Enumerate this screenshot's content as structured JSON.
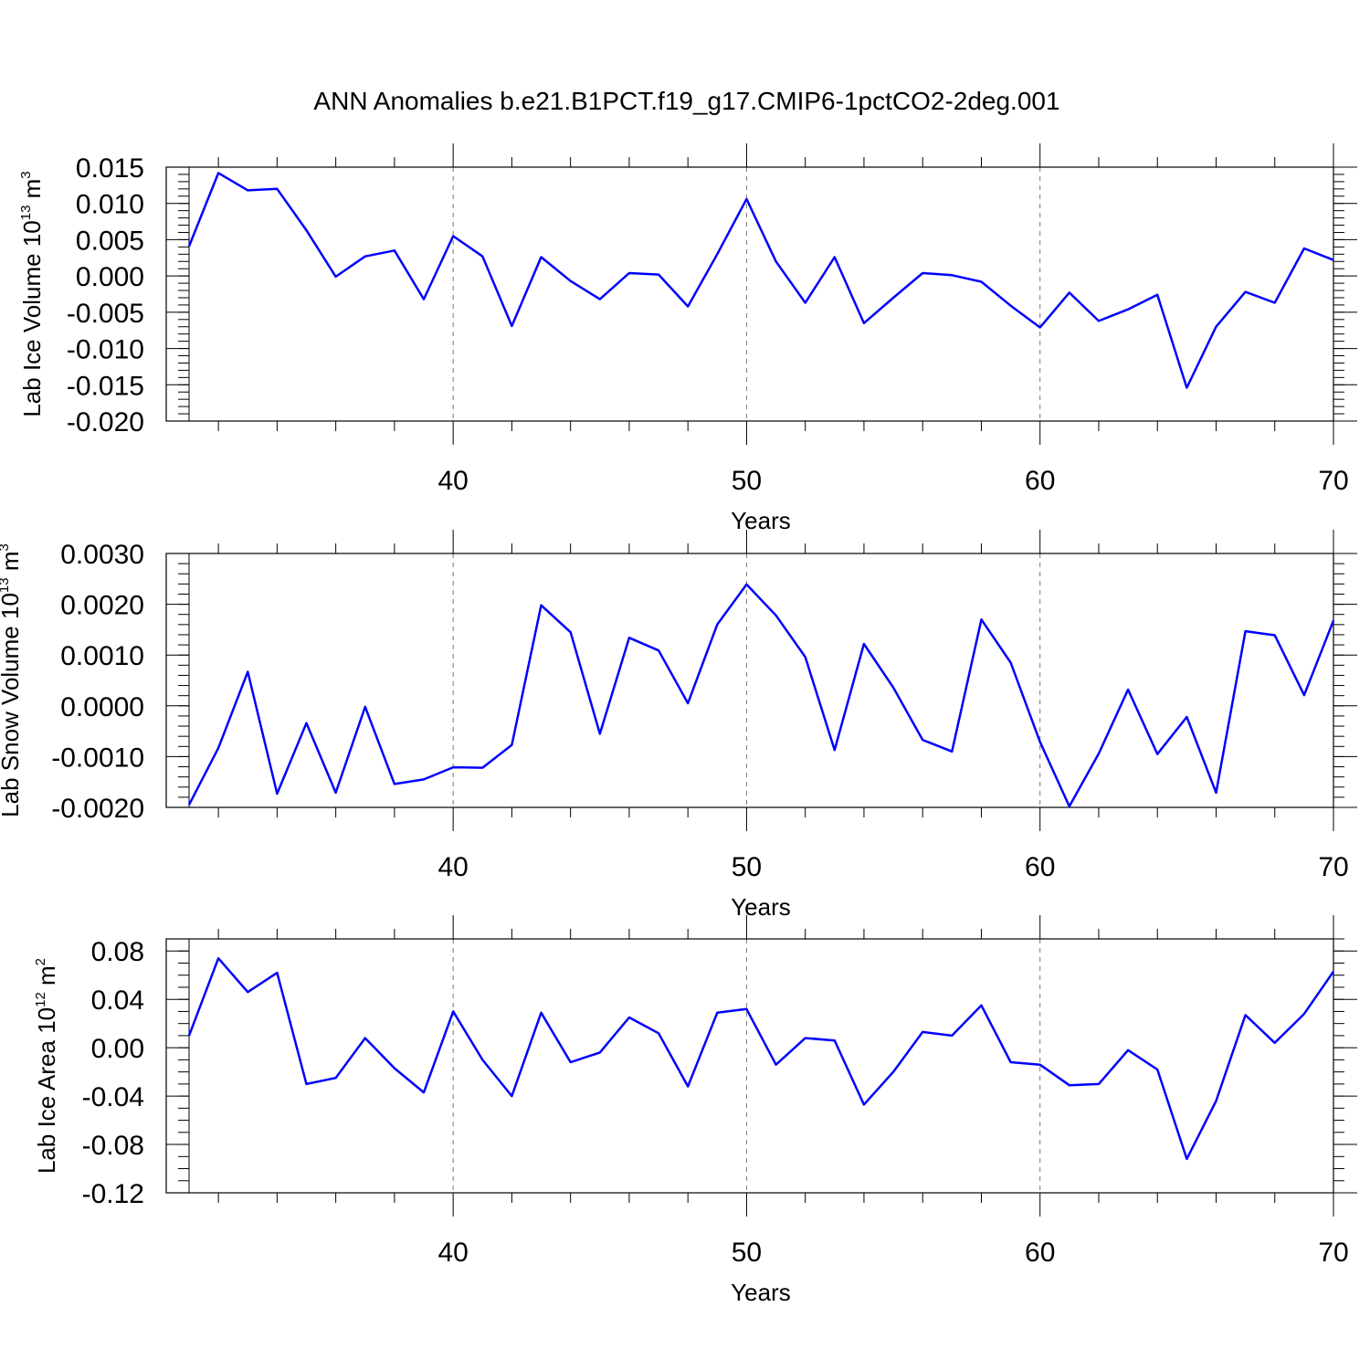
{
  "title": "ANN Anomalies b.e21.B1PCT.f19_g17.CMIP6-1pctCO2-2deg.001",
  "colors": {
    "series": "#0000ff",
    "grid": "#777777",
    "axis": "#000000"
  },
  "chart_data": [
    {
      "type": "line",
      "ylabel": {
        "prefix": "Lab Ice Volume 10",
        "exponent": "13",
        "unit": " m",
        "unit_exponent": "3"
      },
      "xlabel": "Years",
      "xlim": [
        31,
        70
      ],
      "ylim": [
        -0.02,
        0.015
      ],
      "x_ticks": [
        40,
        50,
        60,
        70
      ],
      "x_tick_labels": [
        "40",
        "50",
        "60",
        "70"
      ],
      "x_minor_step": 2,
      "y_ticks": [
        -0.02,
        -0.015,
        -0.01,
        -0.005,
        0.0,
        0.005,
        0.01,
        0.015
      ],
      "y_tick_labels": [
        "-0.020",
        "-0.015",
        "-0.010",
        "-0.005",
        "0.000",
        "0.005",
        "0.010",
        "0.015"
      ],
      "y_minor_step": 0.001,
      "grid_x": [
        40,
        50,
        60
      ],
      "x": [
        31,
        32,
        33,
        34,
        35,
        36,
        37,
        38,
        39,
        40,
        41,
        42,
        43,
        44,
        45,
        46,
        47,
        48,
        49,
        50,
        51,
        52,
        53,
        54,
        55,
        56,
        57,
        58,
        59,
        60,
        61,
        62,
        63,
        64,
        65,
        66,
        67,
        68,
        69,
        70
      ],
      "y": [
        0.0041,
        0.0142,
        0.0118,
        0.012,
        0.0063,
        -0.0001,
        0.0027,
        0.0035,
        -0.0032,
        0.0055,
        0.0027,
        -0.0069,
        0.0026,
        -0.0007,
        -0.0032,
        0.0004,
        0.0002,
        -0.0042,
        0.003,
        0.0106,
        0.002,
        -0.0037,
        0.0026,
        -0.0065,
        -0.003,
        0.0004,
        0.0001,
        -0.0008,
        -0.0041,
        -0.0071,
        -0.0023,
        -0.0062,
        -0.0046,
        -0.0026,
        -0.0154,
        -0.007,
        -0.0022,
        -0.0037,
        0.0038,
        0.0022
      ]
    },
    {
      "type": "line",
      "ylabel": {
        "prefix": "Lab Snow Volume 10",
        "exponent": "13",
        "unit": " m",
        "unit_exponent": "3"
      },
      "xlabel": "Years",
      "xlim": [
        31,
        70
      ],
      "ylim": [
        -0.002,
        0.003
      ],
      "x_ticks": [
        40,
        50,
        60,
        70
      ],
      "x_tick_labels": [
        "40",
        "50",
        "60",
        "70"
      ],
      "x_minor_step": 2,
      "y_ticks": [
        -0.002,
        -0.001,
        0.0,
        0.001,
        0.002,
        0.003
      ],
      "y_tick_labels": [
        "-0.0020",
        "-0.0010",
        "0.0000",
        "0.0010",
        "0.0020",
        "0.0030"
      ],
      "y_minor_step": 0.0002,
      "grid_x": [
        40,
        50,
        60
      ],
      "x": [
        31,
        32,
        33,
        34,
        35,
        36,
        37,
        38,
        39,
        40,
        41,
        42,
        43,
        44,
        45,
        46,
        47,
        48,
        49,
        50,
        51,
        52,
        53,
        54,
        55,
        56,
        57,
        58,
        59,
        60,
        61,
        62,
        63,
        64,
        65,
        66,
        67,
        68,
        69,
        70
      ],
      "y": [
        -0.00195,
        -0.00083,
        0.00067,
        -0.00173,
        -0.00034,
        -0.00171,
        -2e-05,
        -0.00154,
        -0.00145,
        -0.00121,
        -0.00122,
        -0.00077,
        0.00198,
        0.00145,
        -0.00055,
        0.00134,
        0.00109,
        5e-05,
        0.0016,
        0.00239,
        0.00178,
        0.00096,
        -0.00087,
        0.00122,
        0.00036,
        -0.00067,
        -0.0009,
        0.0017,
        0.00085,
        -0.00071,
        -0.00198,
        -0.00094,
        0.00032,
        -0.00095,
        -0.00022,
        -0.00171,
        0.00147,
        0.00139,
        0.00021,
        0.00168
      ]
    },
    {
      "type": "line",
      "ylabel": {
        "prefix": "Lab Ice Area 10",
        "exponent": "12",
        "unit": " m",
        "unit_exponent": "2"
      },
      "xlabel": "Years",
      "xlim": [
        31,
        70
      ],
      "ylim": [
        -0.12,
        0.09
      ],
      "x_ticks": [
        40,
        50,
        60,
        70
      ],
      "x_tick_labels": [
        "40",
        "50",
        "60",
        "70"
      ],
      "x_minor_step": 2,
      "y_ticks": [
        -0.12,
        -0.08,
        -0.04,
        0.0,
        0.04,
        0.08
      ],
      "y_tick_labels": [
        "-0.12",
        "-0.08",
        "-0.04",
        "0.00",
        "0.04",
        "0.08"
      ],
      "y_minor_step": 0.01,
      "grid_x": [
        40,
        50,
        60
      ],
      "x": [
        31,
        32,
        33,
        34,
        35,
        36,
        37,
        38,
        39,
        40,
        41,
        42,
        43,
        44,
        45,
        46,
        47,
        48,
        49,
        50,
        51,
        52,
        53,
        54,
        55,
        56,
        57,
        58,
        59,
        60,
        61,
        62,
        63,
        64,
        65,
        66,
        67,
        68,
        69,
        70
      ],
      "y": [
        0.01,
        0.074,
        0.046,
        0.062,
        -0.03,
        -0.025,
        0.008,
        -0.017,
        -0.037,
        0.03,
        -0.01,
        -0.04,
        0.029,
        -0.012,
        -0.004,
        0.025,
        0.012,
        -0.032,
        0.029,
        0.032,
        -0.014,
        0.008,
        0.006,
        -0.047,
        -0.02,
        0.013,
        0.01,
        0.035,
        -0.012,
        -0.014,
        -0.031,
        -0.03,
        -0.002,
        -0.018,
        -0.092,
        -0.044,
        0.027,
        0.004,
        0.028,
        0.063
      ]
    }
  ]
}
